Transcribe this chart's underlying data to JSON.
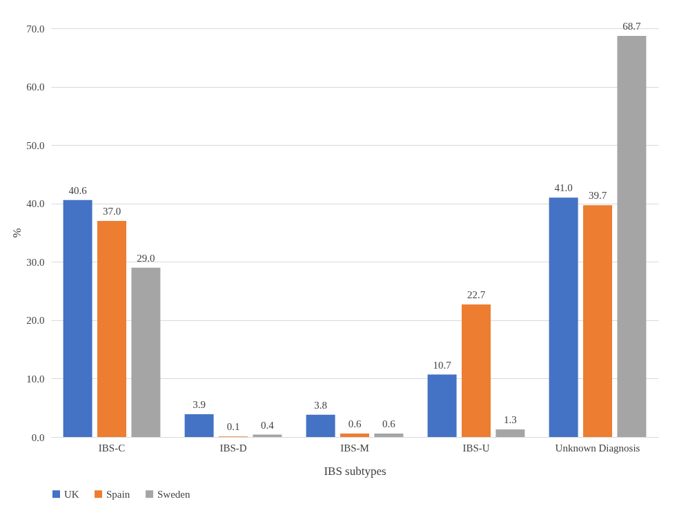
{
  "chart_data": {
    "type": "bar",
    "xlabel": "IBS subtypes",
    "ylabel": "%",
    "categories": [
      "IBS-C",
      "IBS-D",
      "IBS-M",
      "IBS-U",
      "Unknown Diagnosis"
    ],
    "series": [
      {
        "name": "UK",
        "color": "#4472c4",
        "values": [
          40.6,
          3.9,
          3.8,
          10.7,
          41.0
        ],
        "value_labels": [
          "40.6",
          "3.9",
          "3.8",
          "10.7",
          "41.0"
        ]
      },
      {
        "name": "Spain",
        "color": "#ed7d31",
        "values": [
          37.0,
          0.1,
          0.6,
          22.7,
          39.7
        ],
        "value_labels": [
          "37.0",
          "0.1",
          "0.6",
          "22.7",
          "39.7"
        ]
      },
      {
        "name": "Sweden",
        "color": "#a5a5a5",
        "values": [
          29.0,
          0.4,
          0.6,
          1.3,
          68.7
        ],
        "value_labels": [
          "29.0",
          "0.4",
          "0.6",
          "1.3",
          "68.7"
        ]
      }
    ],
    "ylim": [
      0,
      70
    ],
    "yticks": [
      {
        "value": 0,
        "label": "0.0"
      },
      {
        "value": 10,
        "label": "10.0"
      },
      {
        "value": 20,
        "label": "20.0"
      },
      {
        "value": 30,
        "label": "30.0"
      },
      {
        "value": 40,
        "label": "40.0"
      },
      {
        "value": 50,
        "label": "50.0"
      },
      {
        "value": 60,
        "label": "60.0"
      },
      {
        "value": 70,
        "label": "70.0"
      }
    ],
    "grid": "y",
    "legend": "bottom"
  }
}
